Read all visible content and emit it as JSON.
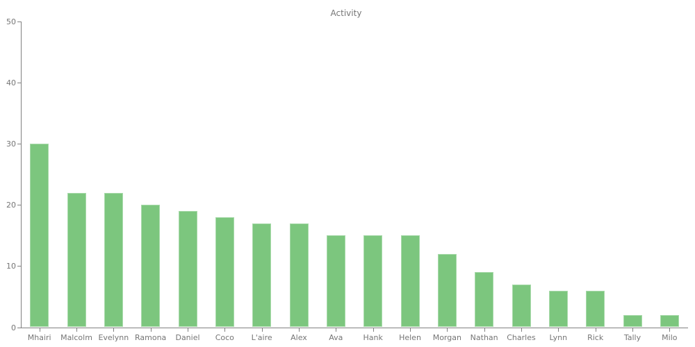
{
  "chart_data": {
    "type": "bar",
    "title": "Activity",
    "categories": [
      "Mhairi",
      "Malcolm",
      "Evelynn",
      "Ramona",
      "Daniel",
      "Coco",
      "L'aire",
      "Alex",
      "Ava",
      "Hank",
      "Helen",
      "Morgan",
      "Nathan",
      "Charles",
      "Lynn",
      "Rick",
      "Tally",
      "Milo"
    ],
    "values": [
      30,
      22,
      22,
      20,
      19,
      18,
      17,
      17,
      15,
      15,
      15,
      12,
      9,
      7,
      6,
      6,
      2,
      2
    ],
    "xlabel": "",
    "ylabel": "",
    "ylim": [
      0,
      50
    ],
    "yticks": [
      0,
      10,
      20,
      30,
      40,
      50
    ],
    "grid": "off",
    "legend": "none",
    "colors": {
      "bar_fill": "#7cc67e",
      "axis_line": "#808080",
      "tick_text": "#757575",
      "title_text": "#757575",
      "background": "#ffffff"
    }
  }
}
